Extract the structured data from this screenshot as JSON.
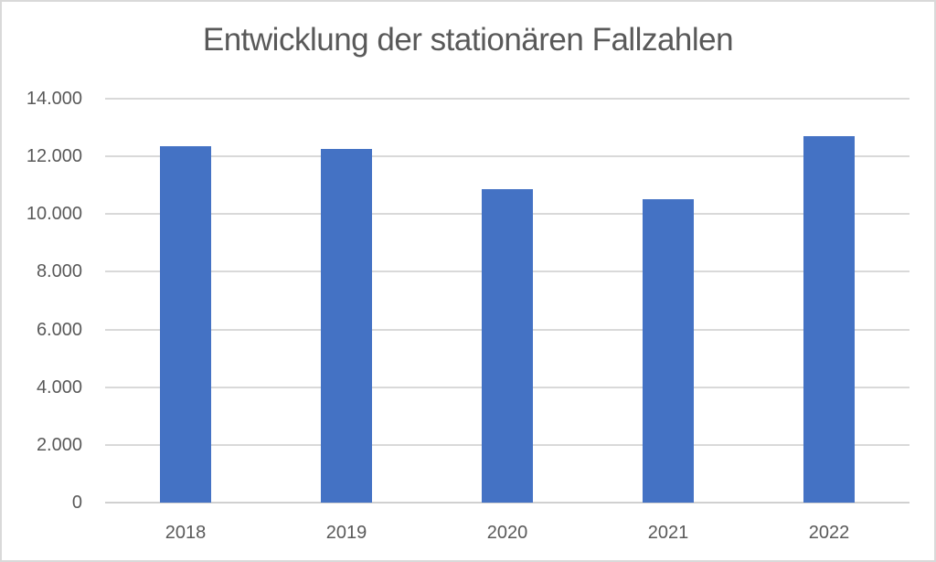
{
  "chart_data": {
    "type": "bar",
    "title": "Entwicklung der stationären Fallzahlen",
    "categories": [
      "2018",
      "2019",
      "2020",
      "2021",
      "2022"
    ],
    "values": [
      12350,
      12250,
      10850,
      10500,
      12700
    ],
    "xlabel": "",
    "ylabel": "",
    "ylim": [
      0,
      14000
    ],
    "ytick_step": 2000,
    "ytick_labels": [
      "0",
      "2.000",
      "4.000",
      "6.000",
      "8.000",
      "10.000",
      "12.000",
      "14.000"
    ],
    "grid": true,
    "legend_position": "none",
    "colors": {
      "bar": "#4472C4",
      "gridline": "#D9D9D9",
      "axis_line": "#D0D0D0",
      "text": "#595959",
      "background": "#FFFFFF",
      "border": "#D9D9D9"
    }
  }
}
